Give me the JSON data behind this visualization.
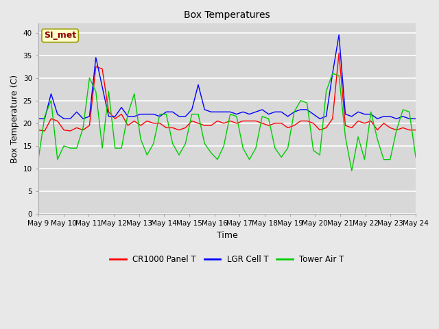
{
  "title": "Box Temperatures",
  "xlabel": "Time",
  "ylabel": "Box Temperature (C)",
  "ylim": [
    0,
    42
  ],
  "yticks": [
    0,
    5,
    10,
    15,
    20,
    25,
    30,
    35,
    40
  ],
  "fig_bg_color": "#e8e8e8",
  "plot_bg_color": "#d8d8d8",
  "annotation_text": "SI_met",
  "annotation_color": "#8b0000",
  "annotation_bg": "#ffffcc",
  "annotation_border": "#999900",
  "series": {
    "cr1000": {
      "label": "CR1000 Panel T",
      "color": "red"
    },
    "lgr": {
      "label": "LGR Cell T",
      "color": "blue"
    },
    "tower": {
      "label": "Tower Air T",
      "color": "#00cc00"
    }
  },
  "cr1000_data": [
    18.5,
    18.3,
    21.0,
    20.5,
    18.5,
    18.3,
    19.0,
    18.5,
    19.5,
    32.5,
    32.0,
    22.5,
    21.0,
    22.0,
    19.5,
    20.5,
    19.5,
    20.5,
    20.0,
    20.0,
    19.0,
    19.0,
    18.5,
    19.0,
    20.5,
    20.0,
    19.5,
    19.5,
    20.5,
    20.0,
    20.5,
    20.0,
    20.5,
    20.5,
    20.5,
    20.0,
    19.5,
    20.0,
    20.0,
    19.0,
    19.5,
    20.5,
    20.5,
    20.0,
    18.5,
    19.0,
    21.0,
    35.5,
    19.5,
    19.0,
    20.5,
    20.0,
    20.5,
    18.5,
    20.0,
    19.0,
    18.5,
    19.0,
    18.5,
    18.5
  ],
  "lgr_data": [
    21.0,
    21.0,
    26.5,
    22.0,
    21.0,
    21.0,
    22.5,
    21.0,
    21.5,
    34.5,
    28.0,
    21.5,
    21.5,
    23.5,
    21.5,
    21.5,
    22.0,
    22.0,
    22.0,
    21.5,
    22.5,
    22.5,
    21.5,
    21.5,
    23.0,
    28.5,
    23.0,
    22.5,
    22.5,
    22.5,
    22.5,
    22.0,
    22.5,
    22.0,
    22.5,
    23.0,
    22.0,
    22.5,
    22.5,
    21.5,
    22.5,
    23.0,
    23.0,
    22.0,
    21.0,
    21.5,
    31.0,
    39.5,
    22.0,
    21.5,
    22.5,
    22.0,
    22.0,
    21.0,
    21.5,
    21.5,
    21.0,
    21.5,
    21.0,
    21.0
  ],
  "tower_data": [
    12.0,
    21.5,
    25.0,
    12.0,
    15.0,
    14.5,
    14.5,
    19.0,
    30.0,
    27.0,
    14.5,
    27.0,
    14.5,
    14.5,
    22.0,
    26.5,
    16.5,
    13.0,
    15.5,
    22.0,
    22.0,
    15.5,
    13.0,
    15.5,
    22.0,
    22.0,
    15.5,
    13.5,
    12.0,
    15.0,
    22.0,
    21.5,
    14.5,
    12.0,
    14.5,
    21.5,
    21.0,
    14.5,
    12.5,
    14.5,
    22.5,
    25.0,
    24.5,
    14.0,
    13.0,
    27.0,
    31.0,
    30.5,
    17.0,
    9.5,
    17.0,
    12.0,
    22.5,
    16.5,
    12.0,
    12.0,
    18.5,
    23.0,
    22.5,
    12.5
  ],
  "x_start": 9.0,
  "x_end": 24.0,
  "x_tick_days": [
    9,
    10,
    11,
    12,
    13,
    14,
    15,
    16,
    17,
    18,
    19,
    20,
    21,
    22,
    23,
    24
  ]
}
